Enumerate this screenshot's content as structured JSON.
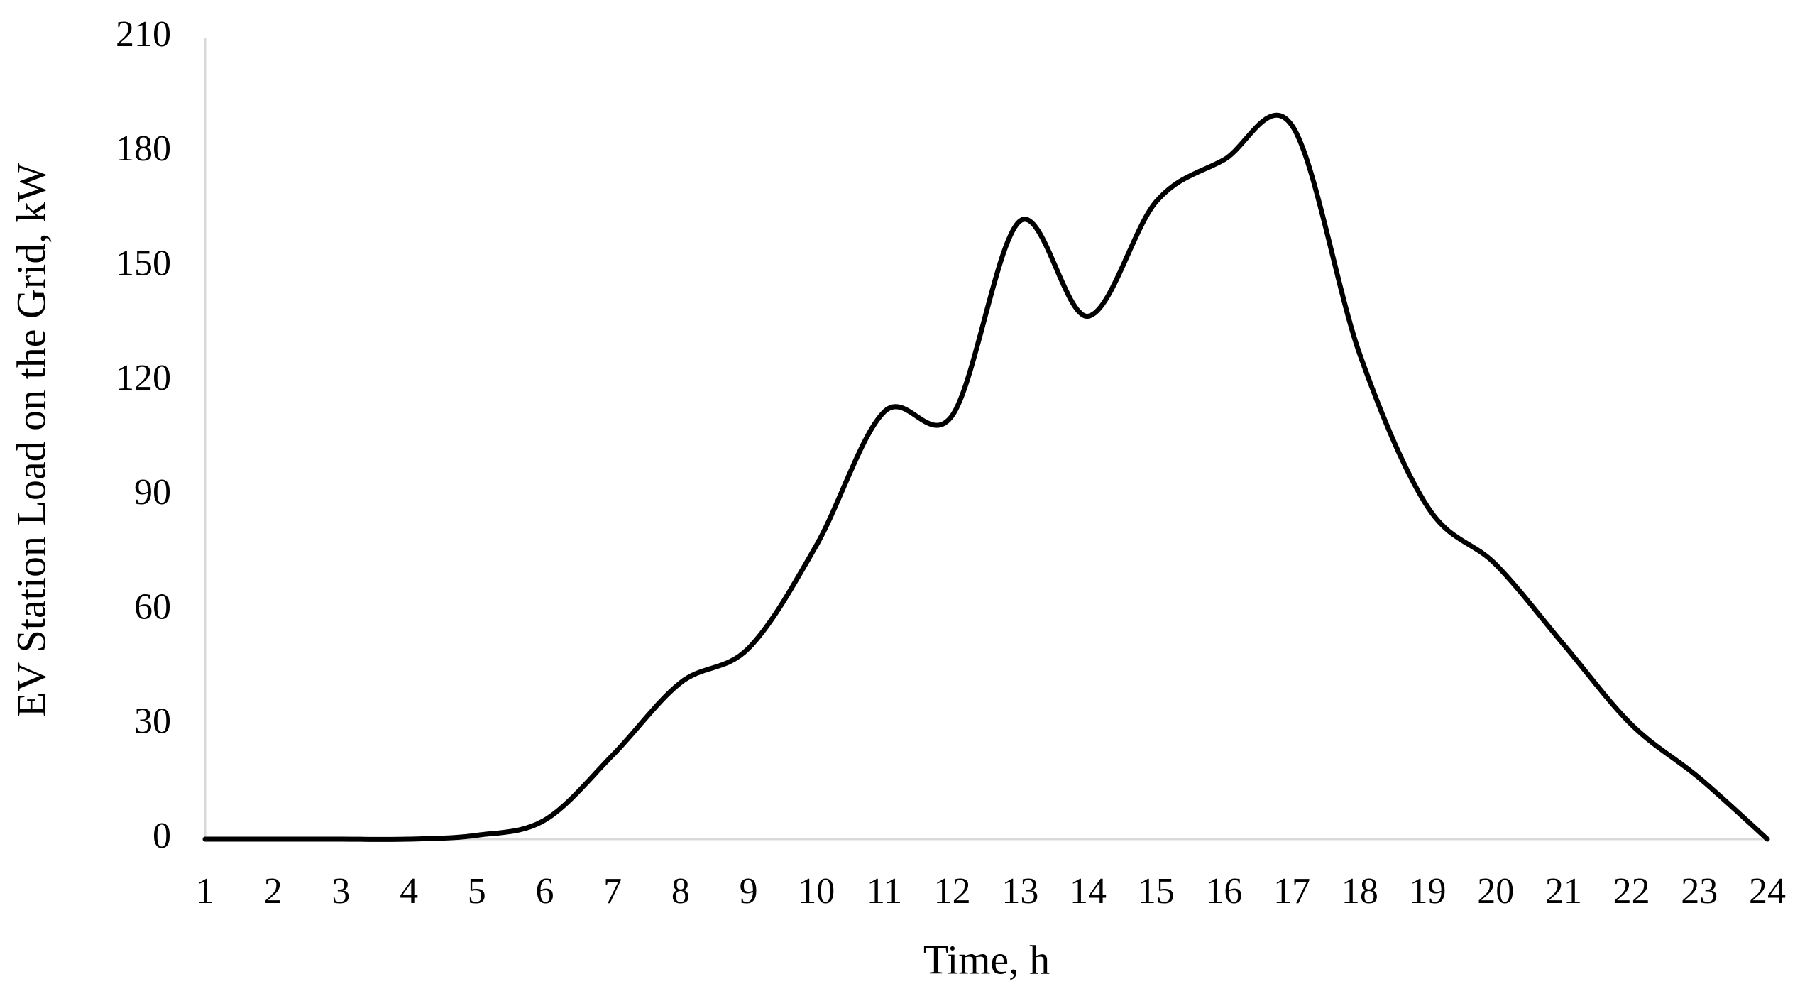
{
  "chart_data": {
    "type": "line",
    "x_label": "Time, h",
    "y_label": "EV Station Load on the Grid, kW",
    "categories": [
      "1",
      "2",
      "3",
      "4",
      "5",
      "6",
      "7",
      "8",
      "9",
      "10",
      "11",
      "12",
      "13",
      "14",
      "15",
      "16",
      "17",
      "18",
      "19",
      "20",
      "21",
      "22",
      "23",
      "24"
    ],
    "series": [
      {
        "name": "EV Station Load",
        "color": "#000000",
        "values": [
          0,
          0,
          0,
          0,
          1,
          5,
          22,
          41,
          50,
          77,
          112,
          111,
          162,
          137,
          167,
          178,
          187,
          127,
          87,
          72,
          51,
          30,
          16,
          0
        ]
      }
    ],
    "ylim": [
      0,
      210
    ],
    "yticks": [
      0,
      30,
      60,
      90,
      120,
      150,
      180,
      210
    ],
    "grid": false
  }
}
